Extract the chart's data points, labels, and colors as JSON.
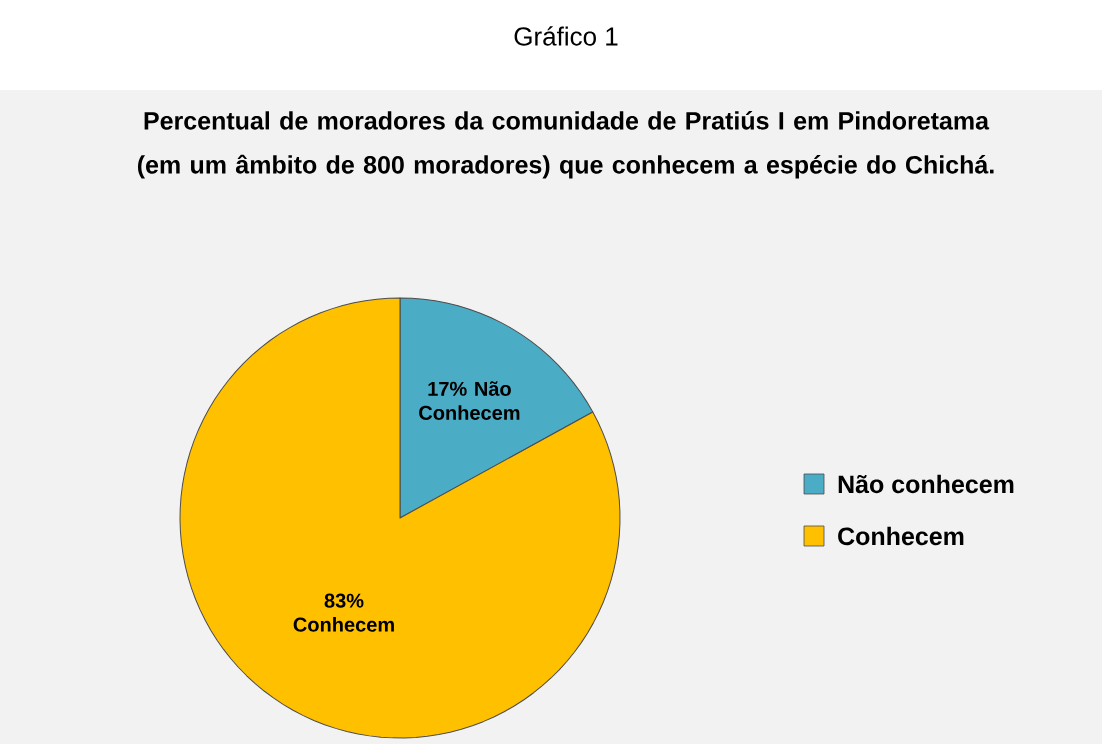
{
  "chart_data": {
    "type": "pie",
    "title": "Percentual de moradores da comunidade de Pratiús I em Pindoretama (em um âmbito de 800 moradores) que conhecem a espécie do Chichá.",
    "annotations": [
      "Gráfico 1"
    ],
    "categories": [
      "Não conhecem",
      "Conhecem"
    ],
    "values": [
      17,
      83
    ],
    "colors": [
      "#4bacc6",
      "#ffc000"
    ],
    "value_labels": [
      "17% Não Conhecem",
      "83% Conhecem"
    ],
    "legend": "right"
  }
}
